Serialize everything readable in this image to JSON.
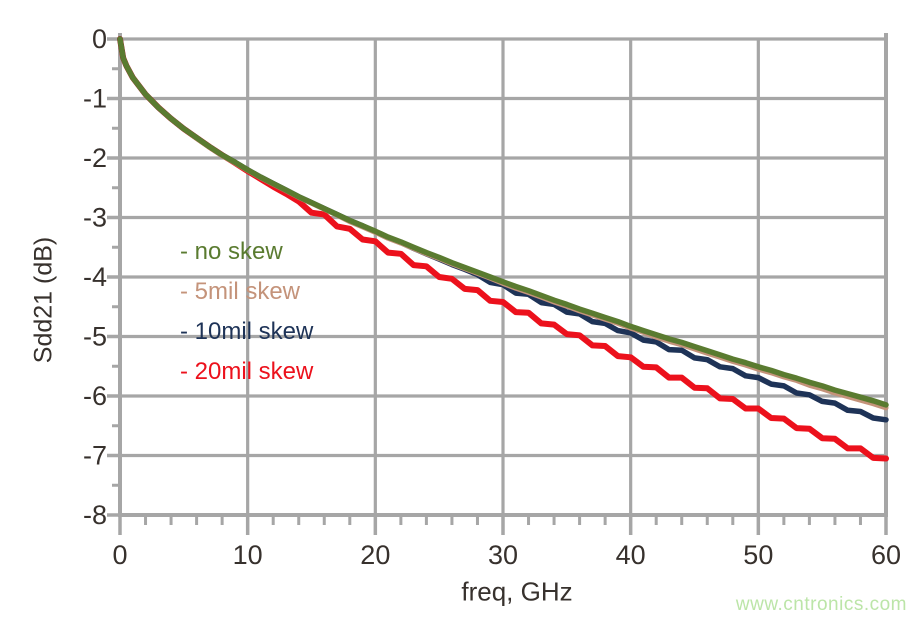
{
  "watermark": {
    "text": "www.cntronics.com",
    "color": "#bce5a8"
  },
  "colors": {
    "grid": "#a6a6a6",
    "axis_text": "#37312d",
    "background": "#ffffff"
  },
  "chart_data": {
    "type": "line",
    "title": "",
    "xlabel": "freq, GHz",
    "ylabel": "Sdd21 (dB)",
    "xlim": [
      0,
      60
    ],
    "ylim": [
      -8,
      0
    ],
    "grid": true,
    "legend_position": "inside-upper-left",
    "x_major_ticks": [
      0,
      10,
      20,
      30,
      40,
      50,
      60
    ],
    "x_minor_step": 2,
    "y_major_ticks": [
      0,
      -1,
      -2,
      -3,
      -4,
      -5,
      -6,
      -7,
      -8
    ],
    "y_minor_step": 0.5,
    "x": [
      0,
      0.25,
      0.5,
      1,
      2,
      3,
      4,
      5,
      6,
      7,
      8,
      9,
      10,
      11,
      12,
      13,
      14,
      15,
      16,
      17,
      18,
      19,
      20,
      21,
      22,
      23,
      24,
      25,
      26,
      27,
      28,
      29,
      30,
      31,
      32,
      33,
      34,
      35,
      36,
      37,
      38,
      39,
      40,
      41,
      42,
      43,
      44,
      45,
      46,
      47,
      48,
      49,
      50,
      51,
      52,
      53,
      54,
      55,
      56,
      57,
      58,
      59,
      60
    ],
    "series": [
      {
        "name": "no skew",
        "legend_label": "- no skew",
        "color": "#5a7b30",
        "y": [
          0,
          -0.32,
          -0.45,
          -0.65,
          -0.93,
          -1.15,
          -1.34,
          -1.51,
          -1.66,
          -1.81,
          -1.95,
          -2.07,
          -2.2,
          -2.32,
          -2.43,
          -2.54,
          -2.65,
          -2.75,
          -2.85,
          -2.95,
          -3.05,
          -3.14,
          -3.23,
          -3.33,
          -3.41,
          -3.5,
          -3.59,
          -3.67,
          -3.76,
          -3.84,
          -3.92,
          -4.0,
          -4.08,
          -4.16,
          -4.23,
          -4.31,
          -4.39,
          -4.46,
          -4.54,
          -4.61,
          -4.68,
          -4.75,
          -4.83,
          -4.9,
          -4.97,
          -5.04,
          -5.1,
          -5.17,
          -5.24,
          -5.31,
          -5.38,
          -5.44,
          -5.51,
          -5.57,
          -5.64,
          -5.7,
          -5.77,
          -5.83,
          -5.9,
          -5.96,
          -6.02,
          -6.08,
          -6.15
        ]
      },
      {
        "name": "5mil skew",
        "legend_label": "- 5mil skew",
        "color": "#c4937a",
        "y": [
          0,
          -0.32,
          -0.45,
          -0.65,
          -0.93,
          -1.15,
          -1.34,
          -1.51,
          -1.67,
          -1.82,
          -1.96,
          -2.08,
          -2.21,
          -2.33,
          -2.44,
          -2.55,
          -2.66,
          -2.76,
          -2.86,
          -2.96,
          -3.07,
          -3.16,
          -3.25,
          -3.35,
          -3.43,
          -3.52,
          -3.61,
          -3.69,
          -3.78,
          -3.86,
          -3.94,
          -4.02,
          -4.11,
          -4.19,
          -4.26,
          -4.34,
          -4.42,
          -4.49,
          -4.57,
          -4.64,
          -4.71,
          -4.78,
          -4.86,
          -4.93,
          -5.01,
          -5.08,
          -5.14,
          -5.21,
          -5.28,
          -5.35,
          -5.42,
          -5.48,
          -5.55,
          -5.61,
          -5.68,
          -5.74,
          -5.82,
          -5.88,
          -5.95,
          -6.01,
          -6.07,
          -6.13,
          -6.2
        ]
      },
      {
        "name": "10mil skew",
        "legend_label": "- 10mil skew",
        "color": "#1e3357",
        "y": [
          0,
          -0.32,
          -0.45,
          -0.65,
          -0.93,
          -1.15,
          -1.34,
          -1.51,
          -1.66,
          -1.81,
          -1.95,
          -2.07,
          -2.2,
          -2.32,
          -2.43,
          -2.54,
          -2.65,
          -2.75,
          -2.85,
          -2.95,
          -3.05,
          -3.14,
          -3.24,
          -3.34,
          -3.42,
          -3.52,
          -3.61,
          -3.7,
          -3.79,
          -3.87,
          -3.96,
          -4.09,
          -4.13,
          -4.27,
          -4.29,
          -4.43,
          -4.46,
          -4.59,
          -4.62,
          -4.75,
          -4.78,
          -4.9,
          -4.94,
          -5.06,
          -5.09,
          -5.22,
          -5.23,
          -5.36,
          -5.39,
          -5.51,
          -5.54,
          -5.66,
          -5.69,
          -5.8,
          -5.83,
          -5.95,
          -5.98,
          -6.09,
          -6.12,
          -6.24,
          -6.26,
          -6.37,
          -6.4
        ]
      },
      {
        "name": "20mil skew",
        "legend_label": "- 20mil skew",
        "color": "#ec111c",
        "y": [
          0,
          -0.32,
          -0.45,
          -0.65,
          -0.93,
          -1.15,
          -1.34,
          -1.51,
          -1.66,
          -1.81,
          -1.95,
          -2.08,
          -2.22,
          -2.35,
          -2.48,
          -2.6,
          -2.73,
          -2.92,
          -2.95,
          -3.15,
          -3.19,
          -3.37,
          -3.4,
          -3.59,
          -3.61,
          -3.8,
          -3.82,
          -4.0,
          -4.03,
          -4.2,
          -4.22,
          -4.4,
          -4.42,
          -4.59,
          -4.6,
          -4.78,
          -4.8,
          -4.96,
          -4.98,
          -5.15,
          -5.16,
          -5.33,
          -5.35,
          -5.51,
          -5.52,
          -5.69,
          -5.69,
          -5.86,
          -5.87,
          -6.04,
          -6.05,
          -6.21,
          -6.21,
          -6.37,
          -6.38,
          -6.54,
          -6.55,
          -6.71,
          -6.72,
          -6.88,
          -6.88,
          -7.04,
          -7.05
        ]
      }
    ]
  }
}
